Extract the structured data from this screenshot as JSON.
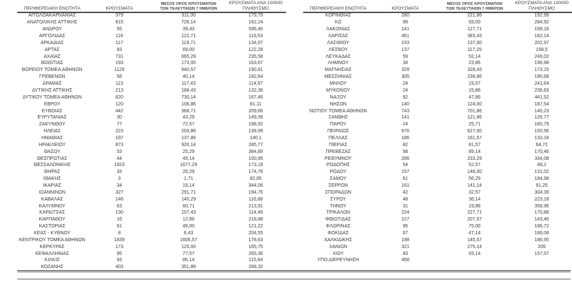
{
  "document": {
    "description_label": "Πίνακας κρουσμάτων ανά περιφερειακή ενότητα"
  },
  "table_headers": {
    "region": "ΠΕΡΙΦΕΡΕΙΑΚΗ ΕΝΟΤΗΤΑ",
    "cases": "ΚΡΟΥΣΜΑΤΑ",
    "avg7_line1": "ΜΕΣΟΣ ΟΡΟΣ ΚΡΟΥΣΜΑΤΩΝ",
    "avg7_line2": "ΤΩΝ ΤΕΛΕΥΤΑΙΩΝ 7 ΗΜΕΡΩΝ",
    "per100k_line1": "ΚΡΟΥΣΜΑΤΑ ΑΝΑ 100000",
    "per100k_line2": "ΠΛΗΘΥΣΜΟ"
  },
  "colors": {
    "background": "#ffffff",
    "text": "#3b3b3b",
    "header_rule": "#4d4d4d",
    "bottom_rule_dark": "#414141",
    "bottom_rule_light": "#ababab"
  },
  "tables": [
    {
      "name": "regional-units-left",
      "rows": [
        [
          "ΑΙΤΩΛΟΑΚΑΡΝΑΝΙΑΣ",
          "379",
          "311,00",
          "179,79"
        ],
        [
          "ΑΝΑΤΟΛΙΚΗΣ ΑΤΤΙΚΗΣ",
          "815",
          "726,14",
          "162,24"
        ],
        [
          "ΑΝΔΡΟΥ",
          "55",
          "39,43",
          "596,46"
        ],
        [
          "ΑΡΓΟΛΙΔΑΣ",
          "116",
          "122,71",
          "119,53"
        ],
        [
          "ΑΡΚΑΔΙΑΣ",
          "117",
          "119,71",
          "134,97"
        ],
        [
          "ΑΡΤΑΣ",
          "83",
          "69,00",
          "122,28"
        ],
        [
          "ΑΧΑΪΑΣ",
          "731",
          "665,29",
          "235,58"
        ],
        [
          "ΒΟΙΩΤΙΑΣ",
          "193",
          "173,00",
          "163,67"
        ],
        [
          "ΒΟΡΕΙΟΥ ΤΟΜΕΑ ΑΘΗΝΩΝ",
          "1129",
          "940,57",
          "190,81"
        ],
        [
          "ΓΡΕΒΕΝΩΝ",
          "58",
          "40,14",
          "182,64"
        ],
        [
          "ΔΡΑΜΑΣ",
          "113",
          "117,43",
          "114,97"
        ],
        [
          "ΔΥΤΙΚΗΣ ΑΤΤΙΚΗΣ",
          "213",
          "188,43",
          "132,36"
        ],
        [
          "ΔΥΤΙΚΟΥ ΤΟΜΕΑ ΑΘΗΝΩΝ",
          "820",
          "730,14",
          "167,46"
        ],
        [
          "ΕΒΡΟΥ",
          "120",
          "106,86",
          "81,11"
        ],
        [
          "ΕΥΒΟΙΑΣ",
          "442",
          "368,71",
          "209,66"
        ],
        [
          "ΕΥΡΥΤΑΝΙΑΣ",
          "30",
          "43,29",
          "149,39"
        ],
        [
          "ΖΑΚΥΝΘΟΥ",
          "77",
          "72,57",
          "188,92"
        ],
        [
          "ΗΛΕΙΑΣ",
          "223",
          "203,86",
          "139,99"
        ],
        [
          "ΗΜΑΘΙΑΣ",
          "197",
          "137,86",
          "140,1"
        ],
        [
          "ΗΡΑΚΛΕΙΟΥ",
          "873",
          "920,14",
          "285,77"
        ],
        [
          "ΘΑΣΟΥ",
          "53",
          "25,29",
          "384,89"
        ],
        [
          "ΘΕΣΠΡΩΤΙΑΣ",
          "44",
          "49,14",
          "100,95"
        ],
        [
          "ΘΕΣΣΑΛΟΝΙΚΗΣ",
          "1923",
          "1677,29",
          "173,19"
        ],
        [
          "ΘΗΡΑΣ",
          "33",
          "26,29",
          "174,76"
        ],
        [
          "ΙΘΑΚΗΣ",
          "3",
          "1,71",
          "92,85"
        ],
        [
          "ΙΚΑΡΙΑΣ",
          "34",
          "19,14",
          "344,06"
        ],
        [
          "ΙΩΑΝΝΙΝΩΝ",
          "327",
          "291,71",
          "194,76"
        ],
        [
          "ΚΑΒΑΛΑΣ",
          "146",
          "140,29",
          "116,88"
        ],
        [
          "ΚΑΛΥΜΝΟΥ",
          "63",
          "60,71",
          "213,91"
        ],
        [
          "ΚΑΡΔΙΤΣΑΣ",
          "130",
          "107,43",
          "114,49"
        ],
        [
          "ΚΑΡΠΑΘΟΥ",
          "16",
          "12,86",
          "218,88"
        ],
        [
          "ΚΑΣΤΟΡΙΑΣ",
          "61",
          "48,00",
          "121,22"
        ],
        [
          "ΚΕΑΣ - ΚΥΘΝΟΥ",
          "8",
          "6,43",
          "204,55"
        ],
        [
          "ΚΕΝΤΡΙΚΟΥ ΤΟΜΕΑ ΑΘΗΝΩΝ",
          "1839",
          "1606,57",
          "178,63"
        ],
        [
          "ΚΕΡΚΥΡΑΣ",
          "173",
          "125,00",
          "165,75"
        ],
        [
          "ΚΕΦΑΛΛΗΝΙΑΣ",
          "95",
          "77,57",
          "265,36"
        ],
        [
          "ΚΙΛΚΙΣ",
          "93",
          "86,14",
          "115,64"
        ],
        [
          "ΚΟΖΑΝΗΣ",
          "403",
          "351,86",
          "268,32"
        ]
      ]
    },
    {
      "name": "regional-units-right",
      "rows": [
        [
          "ΚΟΡΙΝΘΙΑΣ",
          "280",
          "221,86",
          "192,99"
        ],
        [
          "ΚΩ",
          "98",
          "93,00",
          "284,92"
        ],
        [
          "ΛΑΚΩΝΙΑΣ",
          "141",
          "127,71",
          "158,18"
        ],
        [
          "ΛΑΡΙΣΑΣ",
          "461",
          "383,43",
          "162,14"
        ],
        [
          "ΛΑΣΙΘΙΟΥ",
          "153",
          "137,00",
          "202,97"
        ],
        [
          "ΛΕΣΒΟΥ",
          "137",
          "117,29",
          "158,5"
        ],
        [
          "ΛΕΥΚΑΔΑΣ",
          "59",
          "52,14",
          "249,02"
        ],
        [
          "ΛΗΜΝΟΥ",
          "34",
          "23,86",
          "196,98"
        ],
        [
          "ΜΑΓΝΗΣΙΑΣ",
          "329",
          "328,43",
          "173,15"
        ],
        [
          "ΜΕΣΣΗΝΙΑΣ",
          "305",
          "238,86",
          "190,68"
        ],
        [
          "ΜΗΛΟΥ",
          "24",
          "19,57",
          "241,64"
        ],
        [
          "ΜΥΚΟΝΟΥ",
          "24",
          "15,86",
          "236,83"
        ],
        [
          "ΝΑΞΟΥ",
          "92",
          "47,86",
          "441,52"
        ],
        [
          "ΝΗΣΩΝ",
          "140",
          "124,00",
          "187,54"
        ],
        [
          "ΝΟΤΙΟΥ ΤΟΜΕΑ ΑΘΗΝΩΝ",
          "743",
          "701,86",
          "140,23"
        ],
        [
          "ΞΑΝΘΗΣ",
          "141",
          "121,86",
          "126,77"
        ],
        [
          "ΠΑΡΟΥ",
          "24",
          "25,71",
          "160,79"
        ],
        [
          "ΠΕΙΡΑΙΩΣ",
          "676",
          "627,00",
          "150,56"
        ],
        [
          "ΠΕΛΛΑΣ",
          "186",
          "161,57",
          "133,18"
        ],
        [
          "ΠΙΕΡΙΑΣ",
          "82",
          "81,57",
          "64,72"
        ],
        [
          "ΠΡΕΒΕΖΑΣ",
          "98",
          "89,14",
          "170,46"
        ],
        [
          "ΡΕΘΥΜΝΟΥ",
          "286",
          "233,29",
          "334,08"
        ],
        [
          "ΡΟΔΟΠΗΣ",
          "54",
          "52,57",
          "48,2"
        ],
        [
          "ΡΟΔΟΥ",
          "157",
          "148,00",
          "131,02"
        ],
        [
          "ΣΑΜΟΥ",
          "61",
          "56,29",
          "184,98"
        ],
        [
          "ΣΕΡΡΩΝ",
          "161",
          "141,14",
          "91,25"
        ],
        [
          "ΣΠΟΡΑΔΩΝ",
          "42",
          "32,57",
          "304,39"
        ],
        [
          "ΣΥΡΟΥ",
          "48",
          "36,14",
          "223,18"
        ],
        [
          "ΤΗΝΟΥ",
          "31",
          "19,86",
          "358,96"
        ],
        [
          "ΤΡΙΚΑΛΩΝ",
          "224",
          "227,71",
          "170,88"
        ],
        [
          "ΦΘΙΩΤΙΔΑΣ",
          "227",
          "207,57",
          "143,46"
        ],
        [
          "ΦΛΩΡΙΝΑΣ",
          "96",
          "75,00",
          "186,72"
        ],
        [
          "ΦΩΚΙΔΑΣ",
          "67",
          "47,14",
          "166,08"
        ],
        [
          "ΧΑΛΚΙΔΙΚΗΣ",
          "198",
          "145,57",
          "186,95"
        ],
        [
          "ΧΑΝΙΩΝ",
          "321",
          "275,14",
          "205"
        ],
        [
          "ΧΙΟΥ",
          "83",
          "93,14",
          "157,57"
        ],
        [
          "ΥΠΟ ΔΙΕΡΕΥΝΗΣΗ",
          "458",
          "",
          ""
        ]
      ]
    }
  ]
}
